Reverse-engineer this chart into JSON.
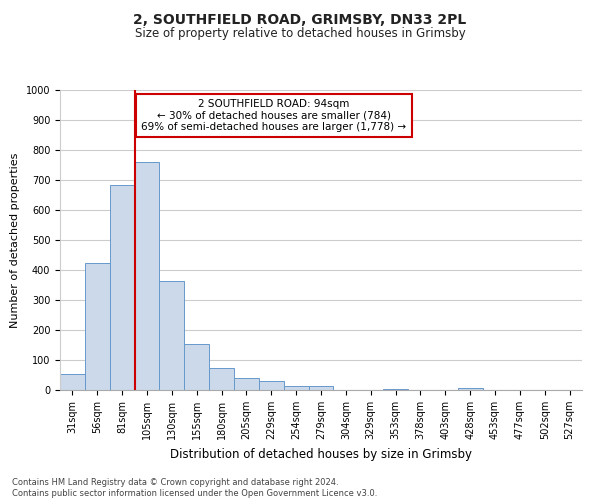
{
  "title": "2, SOUTHFIELD ROAD, GRIMSBY, DN33 2PL",
  "subtitle": "Size of property relative to detached houses in Grimsby",
  "xlabel": "Distribution of detached houses by size in Grimsby",
  "ylabel": "Number of detached properties",
  "bin_labels": [
    "31sqm",
    "56sqm",
    "81sqm",
    "105sqm",
    "130sqm",
    "155sqm",
    "180sqm",
    "205sqm",
    "229sqm",
    "254sqm",
    "279sqm",
    "304sqm",
    "329sqm",
    "353sqm",
    "378sqm",
    "403sqm",
    "428sqm",
    "453sqm",
    "477sqm",
    "502sqm",
    "527sqm"
  ],
  "bar_heights": [
    52,
    425,
    685,
    760,
    365,
    153,
    75,
    40,
    30,
    15,
    12,
    0,
    0,
    5,
    0,
    0,
    8,
    0,
    0,
    0,
    0
  ],
  "bar_color": "#ccd9ea",
  "bar_edge_color": "#6699cc",
  "vline_color": "#cc0000",
  "ylim": [
    0,
    1000
  ],
  "yticks": [
    0,
    100,
    200,
    300,
    400,
    500,
    600,
    700,
    800,
    900,
    1000
  ],
  "annotation_line1": "2 SOUTHFIELD ROAD: 94sqm",
  "annotation_line2": "← 30% of detached houses are smaller (784)",
  "annotation_line3": "69% of semi-detached houses are larger (1,778) →",
  "annotation_box_color": "#ffffff",
  "annotation_box_edge": "#cc0000",
  "footnote": "Contains HM Land Registry data © Crown copyright and database right 2024.\nContains public sector information licensed under the Open Government Licence v3.0.",
  "bg_color": "#ffffff",
  "grid_color": "#cccccc",
  "title_fontsize": 10,
  "subtitle_fontsize": 8.5,
  "ylabel_fontsize": 8,
  "xlabel_fontsize": 8.5,
  "tick_fontsize": 7,
  "annot_fontsize": 7.5,
  "footnote_fontsize": 6,
  "vline_x_pos": 2.5
}
